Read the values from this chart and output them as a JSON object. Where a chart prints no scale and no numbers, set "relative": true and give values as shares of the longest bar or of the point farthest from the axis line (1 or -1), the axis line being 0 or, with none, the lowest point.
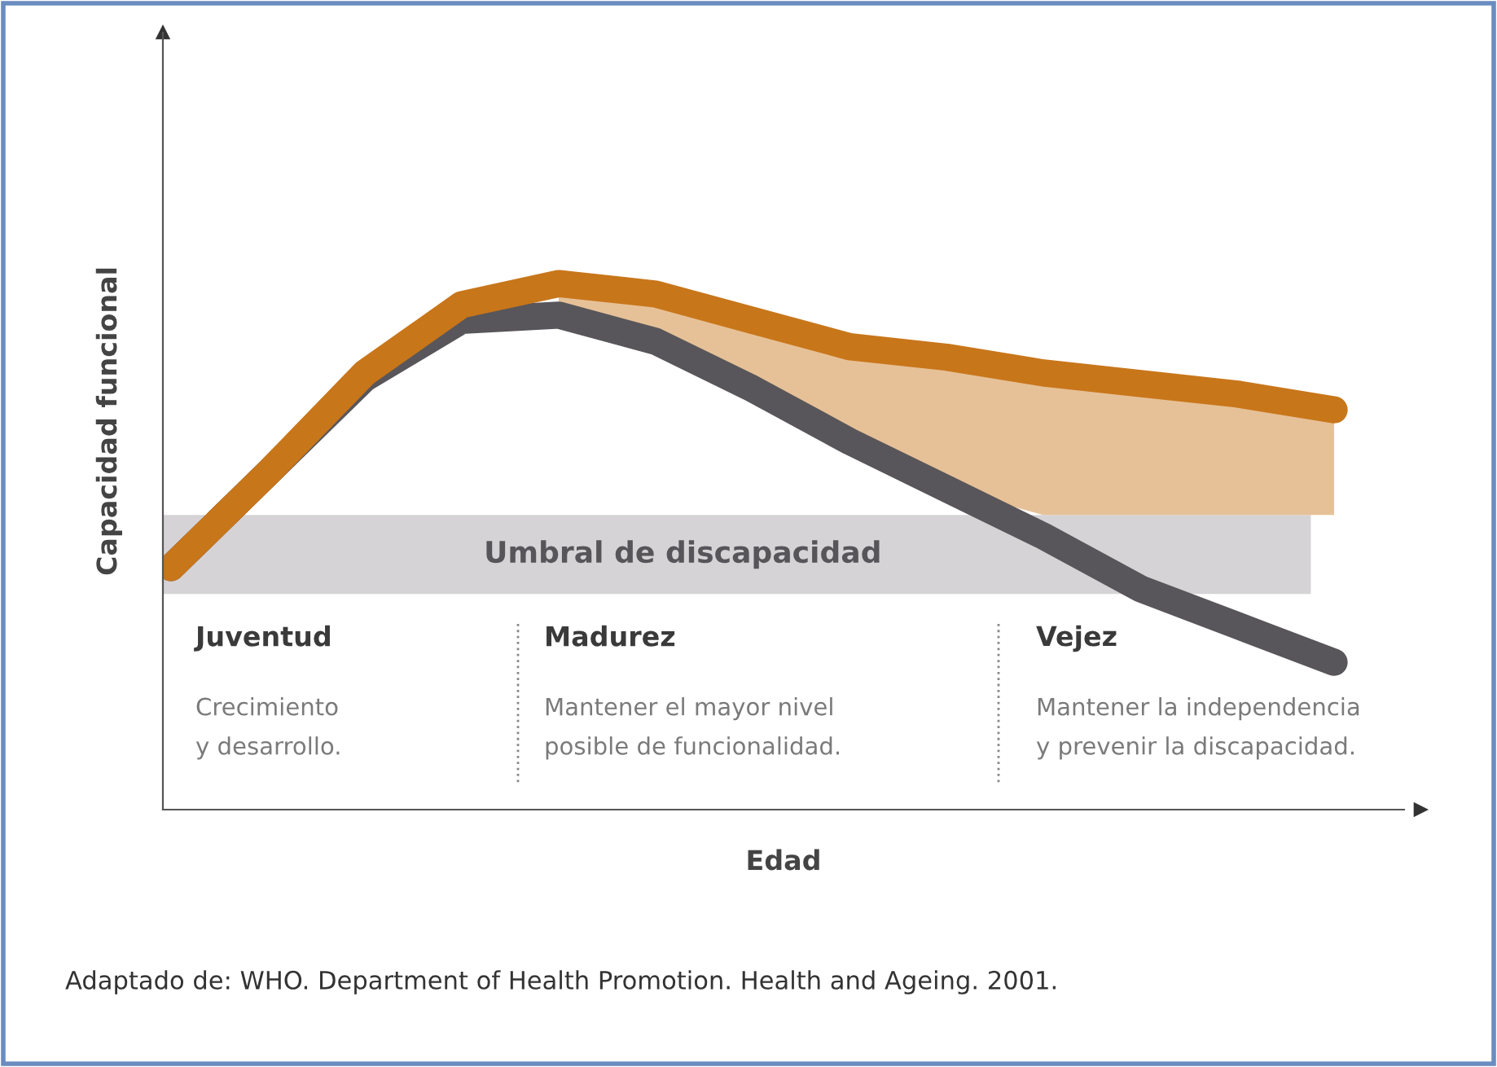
{
  "chart_data": {
    "type": "line",
    "relative": true,
    "xlabel": "Edad",
    "ylabel": "Capacidad funcional",
    "categories": [
      null,
      null,
      null,
      null,
      null,
      null,
      null,
      null,
      null,
      null,
      null,
      null,
      null
    ],
    "series": [
      {
        "color": "#58565a",
        "values": [
          0.46,
          0.64,
          0.82,
          0.93,
          0.94,
          0.89,
          0.8,
          0.7,
          0.61,
          0.52,
          0.42,
          0.35,
          0.28
        ]
      },
      {
        "color": "#c8761a",
        "values": [
          0.46,
          0.64,
          0.83,
          0.96,
          1.0,
          0.98,
          0.93,
          0.88,
          0.86,
          0.83,
          0.81,
          0.79,
          0.76
        ],
        "lower": [
          null,
          null,
          null,
          null,
          0.94,
          0.89,
          0.8,
          0.7,
          0.61,
          0.56,
          0.56,
          0.56,
          0.56
        ],
        "upper": [
          null,
          null,
          null,
          null,
          1.0,
          0.98,
          0.93,
          0.88,
          0.86,
          0.83,
          0.81,
          0.79,
          0.76
        ]
      }
    ],
    "bands": [
      {
        "axis": "y",
        "from": 0.41,
        "to": 0.56,
        "label": "Umbral de discapacidad",
        "color": "#d6d3d6"
      }
    ],
    "annotations": [
      "Juventud",
      "Crecimiento\ny desarrollo.",
      "Madurez",
      "Mantener el mayor nivel\nposible de funcionalidad.",
      "Vejez",
      "Mantener la independencia\ny prevenir la discapacidad.",
      "Adaptado de: WHO. Department of Health Promotion. Health and Ageing. 2001."
    ],
    "grid": false,
    "line_style": "solid"
  }
}
